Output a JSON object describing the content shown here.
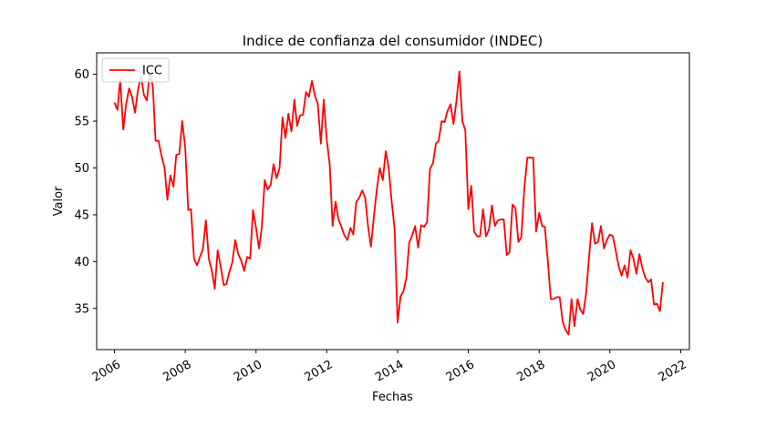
{
  "chart_data": {
    "type": "line",
    "title": "Indice de confianza del consumidor (INDEC)",
    "xlabel": "Fechas",
    "ylabel": "Valor",
    "xlim": [
      "2005-07-01",
      "2022-04-01"
    ],
    "ylim": [
      30.6,
      62.3
    ],
    "x_ticks": [
      "2006",
      "2008",
      "2010",
      "2012",
      "2014",
      "2016",
      "2018",
      "2020",
      "2022"
    ],
    "y_ticks": [
      35,
      40,
      45,
      50,
      55,
      60
    ],
    "grid": false,
    "legend": {
      "position": "top-left",
      "entries": [
        "ICC"
      ]
    },
    "series": [
      {
        "name": "ICC",
        "color": "#ff0000",
        "x": [
          "2006-01",
          "2006-02",
          "2006-03",
          "2006-04",
          "2006-05",
          "2006-06",
          "2006-07",
          "2006-08",
          "2006-09",
          "2006-10",
          "2006-11",
          "2006-12",
          "2007-01",
          "2007-02",
          "2007-03",
          "2007-04",
          "2007-05",
          "2007-06",
          "2007-07",
          "2007-08",
          "2007-09",
          "2007-10",
          "2007-11",
          "2007-12",
          "2008-01",
          "2008-02",
          "2008-03",
          "2008-04",
          "2008-05",
          "2008-06",
          "2008-07",
          "2008-08",
          "2008-09",
          "2008-10",
          "2008-11",
          "2008-12",
          "2009-01",
          "2009-02",
          "2009-03",
          "2009-04",
          "2009-05",
          "2009-06",
          "2009-07",
          "2009-08",
          "2009-09",
          "2009-10",
          "2009-11",
          "2009-12",
          "2010-01",
          "2010-02",
          "2010-03",
          "2010-04",
          "2010-05",
          "2010-06",
          "2010-07",
          "2010-08",
          "2010-09",
          "2010-10",
          "2010-11",
          "2010-12",
          "2011-01",
          "2011-02",
          "2011-03",
          "2011-04",
          "2011-05",
          "2011-06",
          "2011-07",
          "2011-08",
          "2011-09",
          "2011-10",
          "2011-11",
          "2011-12",
          "2012-01",
          "2012-02",
          "2012-03",
          "2012-04",
          "2012-05",
          "2012-06",
          "2012-07",
          "2012-08",
          "2012-09",
          "2012-10",
          "2012-11",
          "2012-12",
          "2013-01",
          "2013-02",
          "2013-03",
          "2013-04",
          "2013-05",
          "2013-06",
          "2013-07",
          "2013-08",
          "2013-09",
          "2013-10",
          "2013-11",
          "2013-12",
          "2014-01",
          "2014-02",
          "2014-03",
          "2014-04",
          "2014-05",
          "2014-06",
          "2014-07",
          "2014-08",
          "2014-09",
          "2014-10",
          "2014-11",
          "2014-12",
          "2015-01",
          "2015-02",
          "2015-03",
          "2015-04",
          "2015-05",
          "2015-06",
          "2015-07",
          "2015-08",
          "2015-09",
          "2015-10",
          "2015-11",
          "2015-12",
          "2016-01",
          "2016-02",
          "2016-03",
          "2016-04",
          "2016-05",
          "2016-06",
          "2016-07",
          "2016-08",
          "2016-09",
          "2016-10",
          "2016-11",
          "2016-12",
          "2017-01",
          "2017-02",
          "2017-03",
          "2017-04",
          "2017-05",
          "2017-06",
          "2017-07",
          "2017-08",
          "2017-09",
          "2017-10",
          "2017-11",
          "2017-12",
          "2018-01",
          "2018-02",
          "2018-03",
          "2018-04",
          "2018-05",
          "2018-06",
          "2018-07",
          "2018-08",
          "2018-09",
          "2018-10",
          "2018-11",
          "2018-12",
          "2019-01",
          "2019-02",
          "2019-03",
          "2019-04",
          "2019-05",
          "2019-06",
          "2019-07",
          "2019-08",
          "2019-09",
          "2019-10",
          "2019-11",
          "2019-12",
          "2020-01",
          "2020-02",
          "2020-03",
          "2020-04",
          "2020-05",
          "2020-06",
          "2020-07",
          "2020-08",
          "2020-09",
          "2020-10",
          "2020-11",
          "2020-12",
          "2021-01",
          "2021-02",
          "2021-03",
          "2021-04",
          "2021-05",
          "2021-06",
          "2021-07"
        ],
        "values": [
          57.0,
          56.2,
          59.5,
          54.1,
          56.8,
          58.5,
          57.6,
          55.9,
          58.4,
          59.8,
          57.8,
          57.2,
          60.2,
          58.7,
          52.9,
          52.9,
          51.3,
          50.1,
          46.6,
          49.2,
          48.0,
          51.4,
          51.5,
          55.0,
          52.2,
          45.5,
          45.6,
          40.3,
          39.6,
          40.5,
          41.3,
          44.4,
          40.3,
          39.1,
          37.1,
          41.2,
          39.5,
          37.5,
          37.6,
          38.9,
          39.9,
          42.3,
          40.8,
          40.1,
          39.0,
          40.5,
          40.3,
          45.5,
          43.6,
          41.4,
          43.6,
          48.7,
          47.7,
          48.2,
          50.4,
          48.9,
          50.0,
          55.4,
          53.2,
          55.8,
          53.9,
          57.3,
          54.5,
          55.6,
          55.7,
          58.1,
          57.6,
          59.3,
          57.7,
          56.8,
          52.6,
          57.3,
          53.0,
          50.3,
          43.8,
          46.4,
          44.5,
          43.7,
          42.8,
          42.3,
          43.6,
          42.9,
          46.4,
          46.8,
          47.6,
          46.8,
          43.9,
          41.6,
          44.8,
          47.7,
          50.0,
          48.7,
          51.8,
          50.0,
          46.4,
          43.5,
          33.5,
          36.3,
          36.8,
          38.2,
          42.0,
          42.8,
          43.8,
          41.5,
          43.9,
          43.7,
          44.2,
          49.9,
          50.5,
          52.6,
          52.9,
          55.0,
          54.9,
          56.1,
          56.8,
          54.7,
          57.2,
          60.3,
          55.0,
          54.0,
          45.6,
          48.1,
          43.2,
          42.7,
          42.7,
          45.6,
          42.7,
          43.4,
          46.0,
          43.8,
          44.4,
          44.5,
          44.5,
          40.7,
          41.0,
          46.1,
          45.7,
          42.1,
          42.6,
          47.8,
          51.1,
          51.1,
          51.1,
          43.2,
          45.2,
          43.8,
          43.7,
          40.0,
          36.0,
          36.0,
          36.2,
          36.2,
          33.6,
          32.7,
          32.2,
          36.0,
          33.1,
          36.0,
          34.9,
          34.4,
          36.6,
          40.6,
          44.1,
          41.9,
          42.1,
          43.8,
          41.4,
          42.3,
          42.9,
          42.7,
          41.2,
          39.5,
          38.5,
          39.6,
          38.3,
          41.2,
          40.3,
          38.7,
          40.8,
          39.3,
          38.3,
          37.8,
          38.1,
          35.4,
          35.5,
          34.7,
          37.8
        ]
      }
    ]
  }
}
